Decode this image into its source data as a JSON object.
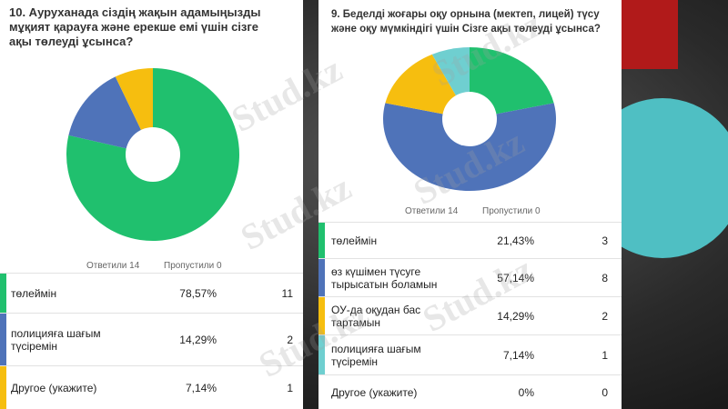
{
  "watermark": "Stud.kz",
  "chart_data": [
    {
      "type": "pie",
      "title": "10. Ауруханада сіздің жақын адамыңызды мұқият қарауға және ерекше емі үшін сізге ақы төлеуді ұсынса?",
      "answered": "Ответили 14",
      "skipped": "Пропустили 0",
      "categories": [
        "төлеймін",
        "полицияға шағым түсіремін",
        "Другое (укажите)"
      ],
      "values": [
        78.57,
        14.29,
        7.14
      ],
      "value_labels": [
        "78,57%",
        "14,29%",
        "7,14%"
      ],
      "counts": [
        11,
        2,
        1
      ],
      "colors": [
        "#20c06e",
        "#4f73b9",
        "#f6be0f"
      ]
    },
    {
      "type": "pie",
      "title": "9. Беделді жоғары оқу орнына (мектеп, лицей) түсу және оқу мүмкіндігі үшін Сізге ақы төлеуді ұсынса?",
      "answered": "Ответили 14",
      "skipped": "Пропустили 0",
      "categories": [
        "төлеймін",
        "өз күшімен түсуге тырысатын боламын",
        "ОУ-да оқудан бас тартамын",
        "полицияға шағым түсіремін",
        "Другое (укажите)"
      ],
      "values": [
        21.43,
        57.14,
        14.29,
        7.14,
        0
      ],
      "value_labels": [
        "21,43%",
        "57,14%",
        "14,29%",
        "7,14%",
        "0%"
      ],
      "counts": [
        3,
        8,
        2,
        1,
        0
      ],
      "colors": [
        "#20c06e",
        "#4f73b9",
        "#f6be0f",
        "#6fcfd0",
        null
      ]
    }
  ]
}
